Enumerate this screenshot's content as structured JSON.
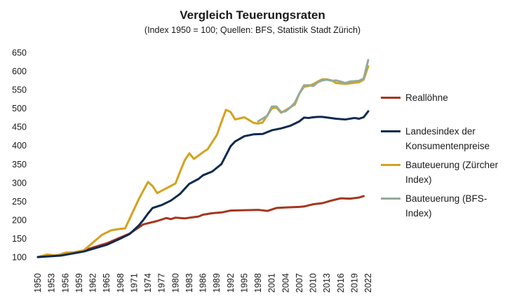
{
  "chart_data": {
    "type": "line",
    "title": "Vergleich Teuerungsraten",
    "subtitle": "(Index 1950 = 100; Quellen: BFS, Statistik Stadt Zürich)",
    "xlabel": "",
    "ylabel": "",
    "xlim": [
      1950,
      2022
    ],
    "ylim": [
      100,
      650
    ],
    "yticks": [
      100,
      150,
      200,
      250,
      300,
      350,
      400,
      450,
      500,
      550,
      600,
      650
    ],
    "xticks": [
      1950,
      1953,
      1956,
      1959,
      1962,
      1965,
      1968,
      1971,
      1974,
      1977,
      1980,
      1983,
      1986,
      1989,
      1992,
      1995,
      1998,
      2001,
      2004,
      2007,
      2010,
      2013,
      2016,
      2019,
      2022
    ],
    "grid": false,
    "legend_position": "right",
    "series": [
      {
        "name": "Reallöhne",
        "color": "#a5361e",
        "x": [
          1950,
          1955,
          1960,
          1965,
          1970,
          1973,
          1976,
          1978,
          1979,
          1980,
          1982,
          1985,
          1986,
          1988,
          1990,
          1992,
          1995,
          1998,
          2000,
          2002,
          2005,
          2007,
          2008,
          2009,
          2010,
          2012,
          2014,
          2016,
          2018,
          2020,
          2021
        ],
        "values": [
          100,
          106,
          118,
          137,
          163,
          188,
          197,
          205,
          202,
          206,
          204,
          209,
          214,
          218,
          220,
          225,
          226,
          227,
          224,
          232,
          234,
          235,
          236,
          239,
          242,
          245,
          252,
          258,
          257,
          260,
          264
        ]
      },
      {
        "name": "Landesindex der Konsumentenpreise",
        "color": "#0d2a4e",
        "x": [
          1950,
          1955,
          1960,
          1965,
          1968,
          1970,
          1972,
          1973,
          1974,
          1975,
          1977,
          1979,
          1981,
          1983,
          1985,
          1986,
          1988,
          1990,
          1992,
          1993,
          1995,
          1997,
          1999,
          2001,
          2003,
          2005,
          2007,
          2008,
          2009,
          2010,
          2011,
          2012,
          2015,
          2017,
          2019,
          2020,
          2021,
          2022
        ],
        "values": [
          100,
          104,
          115,
          133,
          150,
          162,
          185,
          200,
          217,
          232,
          240,
          252,
          270,
          297,
          310,
          320,
          330,
          350,
          398,
          411,
          425,
          430,
          431,
          441,
          446,
          453,
          465,
          475,
          474,
          476,
          477,
          477,
          472,
          470,
          474,
          472,
          476,
          492
        ]
      },
      {
        "name": "Bauteuerung (Zürcher Index)",
        "color": "#d4a21c",
        "x": [
          1950,
          1952,
          1954,
          1956,
          1958,
          1960,
          1962,
          1964,
          1966,
          1968,
          1969,
          1970,
          1972,
          1974,
          1975,
          1976,
          1978,
          1980,
          1981,
          1982,
          1983,
          1984,
          1986,
          1987,
          1989,
          1990,
          1991,
          1992,
          1993,
          1995,
          1997,
          1998,
          1999,
          2001,
          2002,
          2003,
          2004,
          2006,
          2007,
          2008,
          2009,
          2010,
          2011,
          2012,
          2013,
          2014,
          2015,
          2016,
          2017,
          2018,
          2019,
          2020,
          2021,
          2022
        ],
        "values": [
          100,
          107,
          104,
          112,
          113,
          118,
          139,
          160,
          172,
          176,
          177,
          203,
          256,
          302,
          291,
          272,
          285,
          298,
          330,
          360,
          379,
          364,
          382,
          390,
          428,
          463,
          496,
          490,
          470,
          476,
          461,
          459,
          462,
          500,
          502,
          488,
          495,
          510,
          540,
          558,
          560,
          565,
          572,
          578,
          578,
          575,
          568,
          567,
          566,
          567,
          569,
          570,
          577,
          613
        ]
      },
      {
        "name": "Bauteuerung (BFS-Index)",
        "color": "#93aa9c",
        "x": [
          1998,
          2000,
          2001,
          2002,
          2003,
          2004,
          2005,
          2006,
          2007,
          2008,
          2009,
          2010,
          2011,
          2012,
          2013,
          2014,
          2015,
          2016,
          2017,
          2018,
          2019,
          2020,
          2021,
          2022
        ],
        "values": [
          465,
          480,
          505,
          505,
          490,
          492,
          502,
          515,
          540,
          562,
          562,
          560,
          570,
          575,
          577,
          574,
          575,
          572,
          568,
          572,
          573,
          574,
          580,
          630
        ]
      }
    ]
  }
}
